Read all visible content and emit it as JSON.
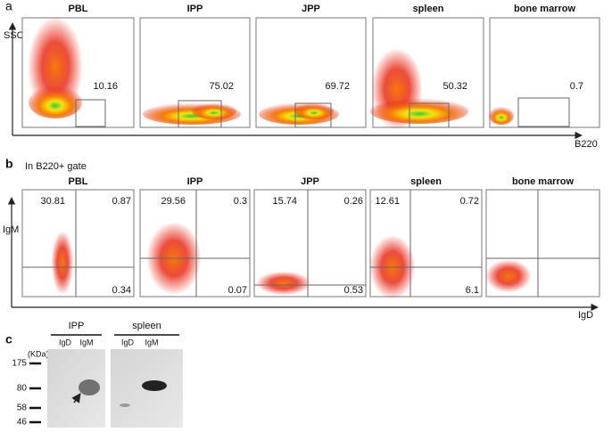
{
  "panel_a": {
    "label": "a",
    "y_axis": "SSC",
    "x_axis": "B220",
    "plots": [
      {
        "title": "PBL",
        "value": "10.16"
      },
      {
        "title": "IPP",
        "value": "75.02"
      },
      {
        "title": "JPP",
        "value": "69.72"
      },
      {
        "title": "spleen",
        "value": "50.32"
      },
      {
        "title": "bone marrow",
        "value": "0.7"
      }
    ]
  },
  "panel_b": {
    "label": "b",
    "subtitle": "In B220+ gate",
    "y_axis": "IgM",
    "x_axis": "IgD",
    "plots": [
      {
        "title": "PBL",
        "upper_left": "30.81",
        "upper_right": "0.87",
        "lower_right": "0.34"
      },
      {
        "title": "IPP",
        "upper_left": "29.56",
        "upper_right": "0.3",
        "lower_right": "0.07"
      },
      {
        "title": "JPP",
        "upper_left": "15.74",
        "upper_right": "0.26",
        "lower_right": "0.53"
      },
      {
        "title": "spleen",
        "upper_left": "12.61",
        "upper_right": "0.72",
        "lower_right": "6.1"
      },
      {
        "title": "bone marrow"
      }
    ]
  },
  "panel_c": {
    "label": "c",
    "unit": "(KDa)",
    "markers": [
      "175",
      "80",
      "58",
      "46"
    ],
    "blots": [
      {
        "title": "IPP",
        "lanes": [
          "IgD",
          "IgM"
        ]
      },
      {
        "title": "spleen",
        "lanes": [
          "IgD",
          "IgM"
        ]
      }
    ]
  }
}
